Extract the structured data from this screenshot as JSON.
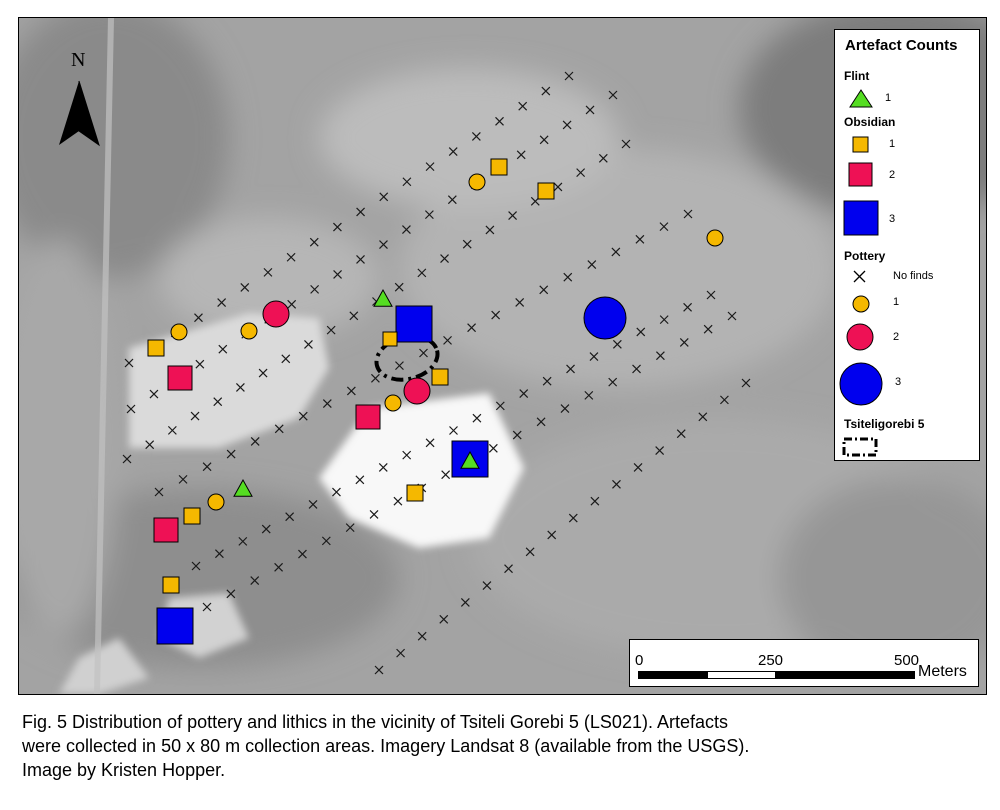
{
  "legend": {
    "title": "Artefact Counts",
    "flint": {
      "heading": "Flint",
      "items": [
        {
          "label": "1",
          "color": "#55dd22"
        }
      ]
    },
    "obsidian": {
      "heading": "Obsidian",
      "items": [
        {
          "label": "1",
          "color": "#f5b800"
        },
        {
          "label": "2",
          "color": "#ee1155"
        },
        {
          "label": "3",
          "color": "#0000ee"
        }
      ]
    },
    "pottery": {
      "heading": "Pottery",
      "items": [
        {
          "label": "No finds"
        },
        {
          "label": "1",
          "color": "#f5b800"
        },
        {
          "label": "2",
          "color": "#ee1155"
        },
        {
          "label": "3",
          "color": "#0000ee"
        }
      ]
    },
    "site": {
      "heading": "Tsiteligorebi 5"
    }
  },
  "north_label": "N",
  "scale": {
    "ticks": [
      "0",
      "250",
      "500"
    ],
    "unit": "Meters"
  },
  "caption": [
    "Fig. 5 Distribution of pottery and lithics in the vicinity of Tsiteli Gorebi 5 (LS021). Artefacts",
    "were collected in 50 x 80 m collection areas. Imagery Landsat 8 (available from the USGS).",
    "Image by Kristen Hopper."
  ]
}
